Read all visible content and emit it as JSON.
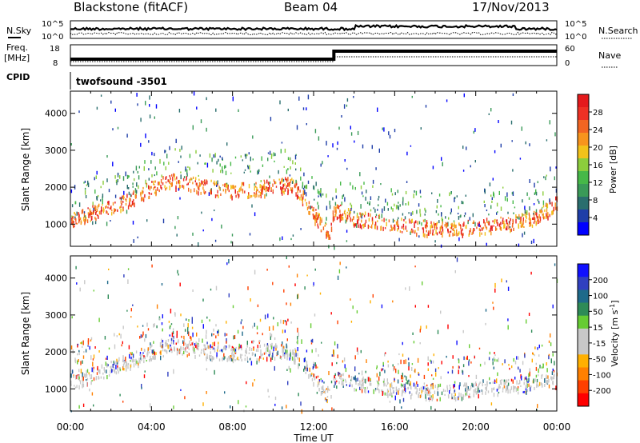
{
  "header": {
    "title": "Blackstone (fitACF)",
    "beam": "Beam 04",
    "date": "17/Nov/2013"
  },
  "noise_panel": {
    "left_label": "N.Sky",
    "right_label": "N.Search",
    "left_ticks": [
      "10^5",
      "10^0"
    ],
    "right_ticks": [
      "10^5",
      "10^0"
    ]
  },
  "freq_panel": {
    "left_label_1": "Freq.",
    "left_label_2": "[MHz]",
    "right_label": "Nave",
    "left_ticks": [
      "18",
      "8"
    ],
    "right_ticks": [
      "60",
      "0"
    ]
  },
  "cpid_panel": {
    "label": "CPID",
    "value": "twofsound  -3501"
  },
  "colors": {
    "power": [
      "#0000ff",
      "#1e3ea8",
      "#2a6e6e",
      "#3a9a58",
      "#46b848",
      "#8ccd3c",
      "#f2c21a",
      "#f7941d",
      "#f26522",
      "#ee3124",
      "#e41a1c"
    ],
    "velocity": [
      "#ff0000",
      "#ff4000",
      "#ff8000",
      "#ffb000",
      "#c8c8c8",
      "#c8c8c8",
      "#66cc33",
      "#2e8b57",
      "#1e6a8a",
      "#3040c0",
      "#1010ff"
    ]
  },
  "chart_data": [
    {
      "type": "heatmap",
      "title": "Power",
      "xlabel": "",
      "ylabel": "Slant Range [km]",
      "x_ticks": [
        "00:00",
        "04:00",
        "08:00",
        "12:00",
        "16:00",
        "20:00",
        "00:00"
      ],
      "xlim": [
        0,
        24
      ],
      "y_ticks": [
        "1000",
        "2000",
        "3000",
        "4000"
      ],
      "ylim": [
        400,
        4600
      ],
      "colorbar": {
        "label": "Power [dB]",
        "ticks": [
          "28",
          "24",
          "20",
          "16",
          "12",
          "8",
          "4"
        ],
        "range": [
          0,
          32
        ]
      },
      "main_band": {
        "hours": [
          0,
          1,
          2,
          3,
          4,
          5,
          6,
          7,
          8,
          9,
          10,
          11,
          12,
          12.8,
          13,
          14,
          15,
          16,
          17,
          18,
          19,
          20,
          21,
          22,
          23,
          24
        ],
        "range_km": [
          1100,
          1300,
          1500,
          1700,
          2000,
          2200,
          2100,
          2000,
          1950,
          1950,
          2050,
          2100,
          1300,
          700,
          1400,
          1200,
          1100,
          1000,
          950,
          900,
          900,
          950,
          1000,
          1100,
          1200,
          1600
        ]
      }
    },
    {
      "type": "heatmap",
      "title": "Velocity",
      "xlabel": "Time UT",
      "ylabel": "Slant Range [km]",
      "x_ticks": [
        "00:00",
        "04:00",
        "08:00",
        "12:00",
        "16:00",
        "20:00",
        "00:00"
      ],
      "xlim": [
        0,
        24
      ],
      "y_ticks": [
        "1000",
        "2000",
        "3000",
        "4000"
      ],
      "ylim": [
        400,
        4600
      ],
      "colorbar": {
        "label": "Velocity [m s",
        "label_sup": "-1",
        "label_end": "]",
        "ticks": [
          "200",
          "100",
          "50",
          "15",
          "-15",
          "-50",
          "-100",
          "-200"
        ],
        "range": [
          -250,
          250
        ]
      },
      "main_band": {
        "hours": [
          0,
          1,
          2,
          3,
          4,
          5,
          6,
          7,
          8,
          9,
          10,
          11,
          12,
          12.8,
          13,
          14,
          15,
          16,
          17,
          18,
          19,
          20,
          21,
          22,
          23,
          24
        ],
        "range_km": [
          1200,
          1400,
          1600,
          1800,
          2000,
          2200,
          2100,
          2000,
          2000,
          2000,
          2050,
          2000,
          1300,
          800,
          1300,
          1200,
          1100,
          1000,
          1000,
          950,
          950,
          1000,
          1050,
          1100,
          1200,
          1400
        ]
      }
    }
  ]
}
